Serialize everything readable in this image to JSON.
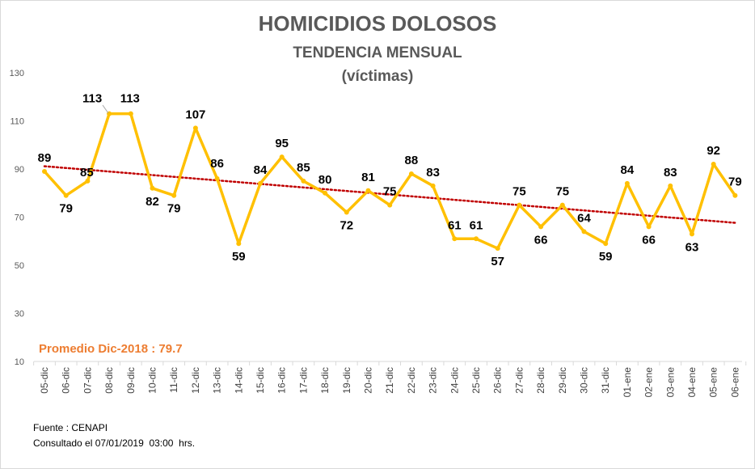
{
  "chart_data": {
    "type": "line",
    "title": "HOMICIDIOS DOLOSOS",
    "subtitle": "TENDENCIA MENSUAL",
    "subtitle2": "(víctimas)",
    "categories": [
      "05-dic",
      "06-dic",
      "07-dic",
      "08-dic",
      "09-dic",
      "10-dic",
      "11-dic",
      "12-dic",
      "13-dic",
      "14-dic",
      "15-dic",
      "16-dic",
      "17-dic",
      "18-dic",
      "19-dic",
      "20-dic",
      "21-dic",
      "22-dic",
      "23-dic",
      "24-dic",
      "25-dic",
      "26-dic",
      "27-dic",
      "28-dic",
      "29-dic",
      "30-dic",
      "31-dic",
      "01-ene",
      "02-ene",
      "03-ene",
      "04-ene",
      "05-ene",
      "06-ene"
    ],
    "series": [
      {
        "values": [
          89,
          79,
          85,
          113,
          113,
          82,
          79,
          107,
          86,
          59,
          84,
          95,
          85,
          80,
          72,
          81,
          75,
          88,
          83,
          61,
          61,
          57,
          75,
          66,
          75,
          64,
          59,
          84,
          66,
          83,
          63,
          92,
          79
        ],
        "color": "#ffc000"
      }
    ],
    "trendline": {
      "type": "linear",
      "style": "dotted",
      "color": "#c00000"
    },
    "ylim": [
      10,
      130
    ],
    "yticks": [
      10,
      30,
      50,
      70,
      90,
      110,
      130
    ],
    "grid": false,
    "legend": "none",
    "data_labels": true,
    "annotation": "Promedio Dic-2018 : 79.7",
    "annotation_color": "#ed7d31"
  },
  "footer": {
    "source": "Fuente : CENAPI",
    "consulted": "Consultado el 07/01/2019  03:00  hrs."
  }
}
